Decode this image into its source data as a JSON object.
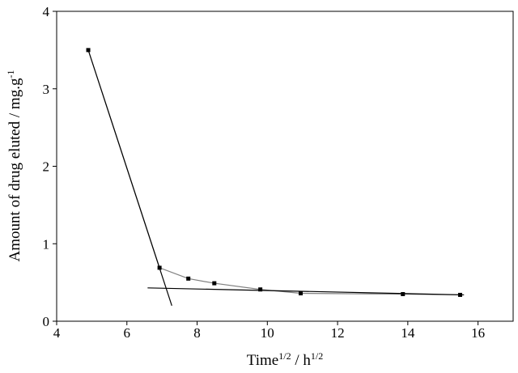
{
  "chart_data": {
    "type": "line",
    "xlabel": [
      {
        "text": "Time"
      },
      {
        "text": "1/2",
        "sup": true
      },
      {
        "text": " / h"
      },
      {
        "text": "1/2",
        "sup": true
      }
    ],
    "ylabel": [
      {
        "text": "Amount of drug eluted / mg.g"
      },
      {
        "text": "-1",
        "sup": true
      }
    ],
    "xlim": [
      4,
      17
    ],
    "xticks": [
      4,
      6,
      8,
      10,
      12,
      14,
      16
    ],
    "ylim": [
      0,
      4
    ],
    "yticks": [
      0,
      1,
      2,
      3,
      4
    ],
    "series": [
      {
        "color": "#808080",
        "markers": true,
        "x": [
          4.9,
          6.93,
          7.75,
          8.49,
          9.8,
          10.95,
          13.86,
          15.49
        ],
        "values": [
          3.5,
          0.69,
          0.55,
          0.49,
          0.41,
          0.36,
          0.35,
          0.34
        ]
      },
      {
        "color": "#000000",
        "markers": false,
        "x": [
          4.9,
          7.28
        ],
        "values": [
          3.5,
          0.2
        ]
      },
      {
        "color": "#000000",
        "markers": false,
        "x": [
          6.59,
          15.6
        ],
        "values": [
          0.43,
          0.34
        ]
      }
    ]
  }
}
